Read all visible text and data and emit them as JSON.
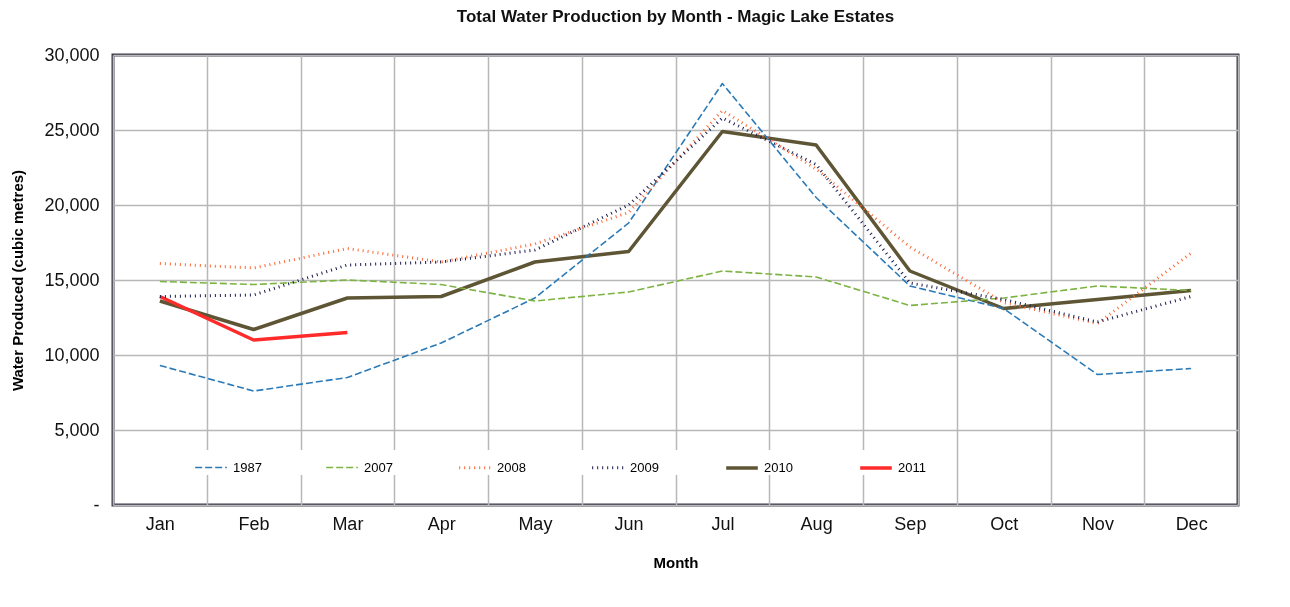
{
  "chart_data": {
    "type": "line",
    "title": "Total Water Production by Month - Magic Lake Estates",
    "xlabel": "Month",
    "ylabel": "Water Produced (cubic metres)",
    "categories": [
      "Jan",
      "Feb",
      "Mar",
      "Apr",
      "May",
      "Jun",
      "Jul",
      "Aug",
      "Sep",
      "Oct",
      "Nov",
      "Dec"
    ],
    "series": [
      {
        "name": "1987",
        "color": "#2a7ab8",
        "line_style": "dashed",
        "values": [
          9300,
          7600,
          8500,
          10800,
          13800,
          18800,
          28100,
          20500,
          14600,
          13100,
          8700,
          9100
        ]
      },
      {
        "name": "2007",
        "color": "#7cb342",
        "line_style": "dashed",
        "values": [
          14900,
          14700,
          15000,
          14700,
          13600,
          14200,
          15600,
          15200,
          13300,
          13800,
          14600,
          14300
        ]
      },
      {
        "name": "2008",
        "color": "#ff6633",
        "line_style": "dotted",
        "values": [
          16100,
          15800,
          17100,
          16200,
          17400,
          19500,
          26300,
          22400,
          17200,
          13500,
          12100,
          16800
        ]
      },
      {
        "name": "2009",
        "color": "#1a1a4e",
        "line_style": "dotted",
        "values": [
          13900,
          14000,
          16000,
          16200,
          17000,
          20000,
          25800,
          22700,
          14800,
          13700,
          12200,
          13900
        ]
      },
      {
        "name": "2010",
        "color": "#5e5535",
        "line_style": "solid",
        "values": [
          13600,
          11700,
          13800,
          13900,
          16200,
          16900,
          24900,
          24000,
          15600,
          13100,
          13700,
          14300
        ]
      },
      {
        "name": "2011",
        "color": "#ff2a2a",
        "line_style": "solid",
        "values": [
          13900,
          11000,
          11500,
          null,
          null,
          null,
          null,
          null,
          null,
          null,
          null,
          null
        ]
      }
    ],
    "ylim": [
      0,
      30000
    ],
    "yticks": [
      {
        "value": 0,
        "label": "-"
      },
      {
        "value": 5000,
        "label": "5,000"
      },
      {
        "value": 10000,
        "label": "10,000"
      },
      {
        "value": 15000,
        "label": "15,000"
      },
      {
        "value": 20000,
        "label": "20,000"
      },
      {
        "value": 25000,
        "label": "25,000"
      },
      {
        "value": 30000,
        "label": "30,000"
      }
    ],
    "grid": true,
    "legend": "bottom"
  }
}
